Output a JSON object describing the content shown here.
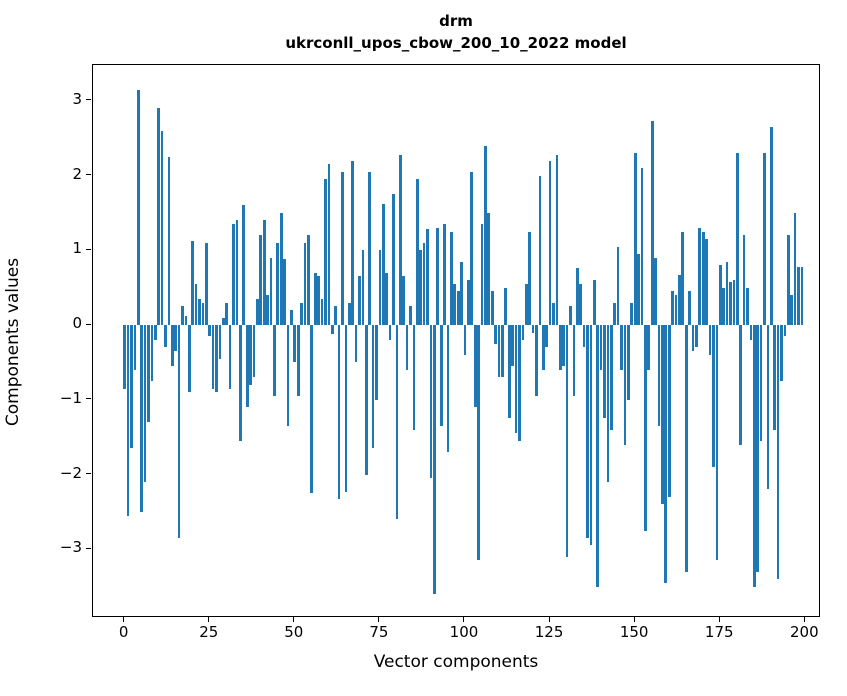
{
  "figure": {
    "title_line1": "drm",
    "title_line2": "ukrconll_upos_cbow_200_10_2022 model",
    "background": "#ffffff",
    "text_color": "#000000"
  },
  "chart_data": {
    "type": "bar",
    "title": "drm\nukrconll_upos_cbow_200_10_2022 model",
    "xlabel": "Vector components",
    "ylabel": "Components values",
    "bar_color": "#1f77b4",
    "grid": false,
    "legend": null,
    "n_bars": 200,
    "xlim": [
      -9.3,
      204.6
    ],
    "ylim": [
      -3.92,
      3.48
    ],
    "xticks": {
      "values": [
        0,
        25,
        50,
        75,
        100,
        125,
        150,
        175,
        200
      ],
      "labels": [
        "0",
        "25",
        "50",
        "75",
        "100",
        "125",
        "150",
        "175",
        "200"
      ]
    },
    "yticks": {
      "values": [
        3,
        2,
        1,
        0,
        -1,
        -2,
        -3
      ],
      "labels": [
        "3",
        "2",
        "1",
        "0",
        "−1",
        "−2",
        "−3"
      ]
    },
    "values": [
      -0.85,
      -2.55,
      -1.65,
      -0.6,
      3.15,
      -2.5,
      -2.1,
      -1.3,
      -0.75,
      -0.2,
      2.9,
      2.6,
      -0.3,
      2.25,
      -0.55,
      -0.35,
      -2.85,
      0.25,
      0.12,
      -0.9,
      1.12,
      0.55,
      0.35,
      0.3,
      1.1,
      -0.15,
      -0.85,
      -0.9,
      -0.45,
      0.1,
      0.3,
      -0.85,
      1.35,
      1.4,
      -1.55,
      1.6,
      -1.1,
      -0.8,
      -0.7,
      0.35,
      1.2,
      1.4,
      0.4,
      0.9,
      -0.95,
      1.1,
      1.5,
      0.88,
      -1.35,
      0.2,
      -0.5,
      -0.95,
      0.3,
      1.1,
      1.2,
      -2.25,
      0.7,
      0.65,
      0.35,
      1.95,
      2.15,
      -0.12,
      0.25,
      -2.33,
      2.05,
      -2.23,
      0.3,
      2.2,
      -0.5,
      0.65,
      1.0,
      -2.0,
      2.05,
      -1.65,
      -1.0,
      1.0,
      1.62,
      0.7,
      -0.2,
      1.75,
      -2.6,
      2.27,
      0.65,
      -0.6,
      0.25,
      -1.4,
      1.95,
      1.0,
      1.1,
      1.28,
      -2.05,
      -3.6,
      1.3,
      -1.35,
      1.35,
      -1.7,
      1.25,
      0.55,
      0.45,
      0.85,
      -0.4,
      0.6,
      2.05,
      -1.1,
      -3.15,
      1.35,
      2.4,
      1.5,
      0.45,
      -0.25,
      -0.7,
      -0.7,
      0.5,
      -1.25,
      -0.55,
      -1.45,
      -1.55,
      -0.2,
      0.55,
      1.25,
      -0.1,
      -0.95,
      2.0,
      -0.6,
      -0.3,
      2.2,
      0.3,
      2.28,
      -0.6,
      -0.55,
      -3.1,
      0.25,
      -0.95,
      0.76,
      0.55,
      -0.3,
      -2.85,
      -2.95,
      0.6,
      -3.5,
      -0.6,
      -1.25,
      -2.1,
      -1.4,
      0.3,
      1.05,
      -0.6,
      -1.6,
      -1.0,
      0.3,
      2.3,
      0.95,
      2.1,
      -2.75,
      -0.6,
      2.73,
      0.9,
      -1.35,
      -2.4,
      -3.45,
      -2.3,
      0.45,
      0.4,
      0.67,
      1.25,
      -3.3,
      0.45,
      -0.35,
      -0.3,
      1.3,
      1.25,
      1.15,
      -0.4,
      -1.9,
      -3.15,
      0.8,
      0.5,
      0.85,
      0.57,
      0.6,
      2.3,
      -1.6,
      1.2,
      0.5,
      -0.2,
      -3.5,
      -3.3,
      -1.55,
      2.3,
      -2.2,
      2.65,
      -1.4,
      -3.4,
      -0.75,
      -0.15,
      1.2,
      0.4,
      1.5,
      0.78,
      0.78
    ]
  }
}
